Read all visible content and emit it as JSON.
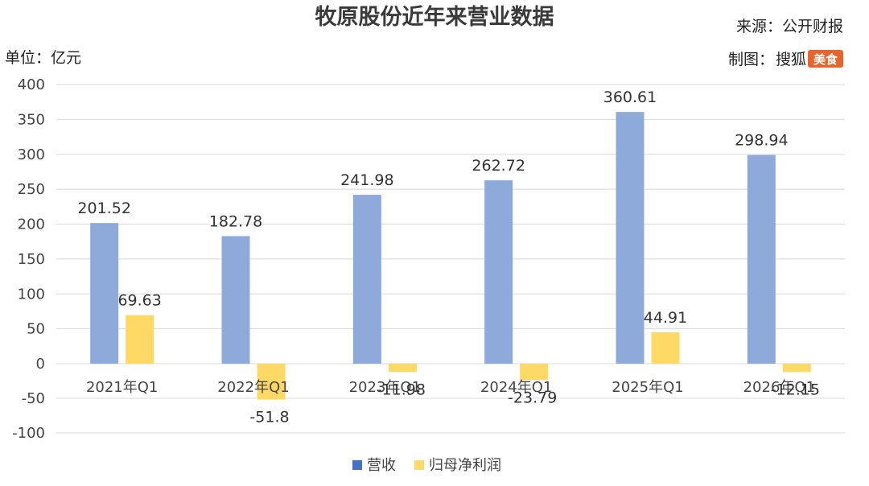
{
  "header": {
    "title": "牧原股份近年来营业数据",
    "source": "来源：公开财报",
    "credit_prefix": "制图：",
    "credit_name": "搜狐",
    "credit_badge": "美食",
    "unit": "单位：亿元"
  },
  "colors": {
    "revenue": "#8eaadb",
    "profit": "#ffd966",
    "grid": "#d9d9d9",
    "badge": "#e8642b",
    "legend_revenue_swatch": "#4472c4",
    "legend_profit_swatch": "#ffd966"
  },
  "chart_data": {
    "type": "bar",
    "title": "牧原股份近年来营业数据",
    "ylabel": "单位：亿元",
    "xlabel": "",
    "ylim": [
      -100,
      400
    ],
    "yticks": [
      400,
      350,
      300,
      250,
      200,
      150,
      100,
      50,
      0,
      -50,
      -100
    ],
    "grid": true,
    "legend_position": "bottom",
    "categories": [
      "2021年Q1",
      "2022年Q1",
      "2023年Q1",
      "2024年Q1",
      "2025年Q1",
      "2026年Q1"
    ],
    "series": [
      {
        "name": "营收",
        "values": [
          201.52,
          182.78,
          241.98,
          262.72,
          360.61,
          298.94
        ],
        "labels": [
          "201.52",
          "182.78",
          "241.98",
          "262.72",
          "360.61",
          "298.94"
        ]
      },
      {
        "name": "归母净利润",
        "values": [
          69.63,
          -51.8,
          -11.98,
          -23.79,
          44.91,
          -12.15
        ],
        "labels": [
          "69.63",
          "-51.8",
          "-11.98",
          "-23.79",
          "44.91",
          "-12.15"
        ]
      }
    ]
  }
}
